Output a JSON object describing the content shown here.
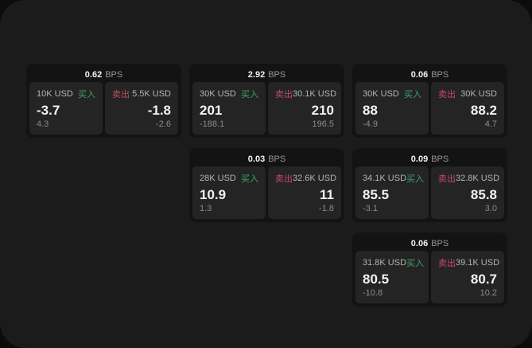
{
  "labels": {
    "buy": "买入",
    "sell": "卖出",
    "bps_unit": "BPS"
  },
  "colors": {
    "background_outer": "#0c0c0c",
    "container": "#1b1b1b",
    "card": "#131313",
    "panel": "#242424",
    "buy_accent": "#3fa36b",
    "sell_accent": "#c54a63",
    "value_text": "#f2f2f2",
    "muted_text": "#8b8b8b"
  },
  "cards": [
    {
      "bps": "0.62",
      "buy": {
        "size": "10K USD",
        "price": "-3.7",
        "delta": "4.3"
      },
      "sell": {
        "size": "5.5K USD",
        "price": "-1.8",
        "delta": "-2.6"
      }
    },
    {
      "bps": "2.92",
      "buy": {
        "size": "30K USD",
        "price": "201",
        "delta": "-188.1"
      },
      "sell": {
        "size": "30.1K USD",
        "price": "210",
        "delta": "196.5"
      }
    },
    {
      "bps": "0.06",
      "buy": {
        "size": "30K USD",
        "price": "88",
        "delta": "-4.9"
      },
      "sell": {
        "size": "30K USD",
        "price": "88.2",
        "delta": "4.7"
      }
    },
    {
      "bps": "0.03",
      "buy": {
        "size": "28K USD",
        "price": "10.9",
        "delta": "1.3"
      },
      "sell": {
        "size": "32.6K USD",
        "price": "11",
        "delta": "-1.8"
      }
    },
    {
      "bps": "0.09",
      "buy": {
        "size": "34.1K USD",
        "price": "85.5",
        "delta": "-3.1"
      },
      "sell": {
        "size": "32.8K USD",
        "price": "85.8",
        "delta": "3.0"
      }
    },
    {
      "bps": "0.06",
      "buy": {
        "size": "31.8K USD",
        "price": "80.5",
        "delta": "-10.8"
      },
      "sell": {
        "size": "39.1K USD",
        "price": "80.7",
        "delta": "10.2"
      }
    }
  ]
}
